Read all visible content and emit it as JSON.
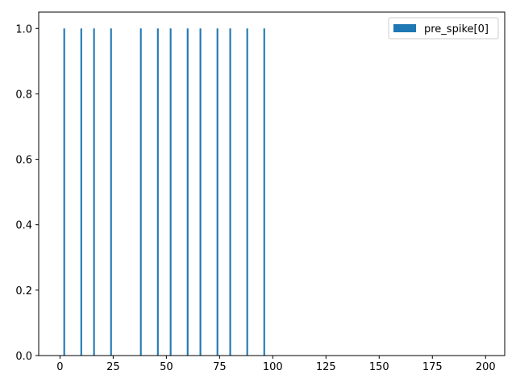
{
  "chart_data": {
    "type": "bar",
    "x": [
      2,
      10,
      16,
      24,
      38,
      46,
      52,
      60,
      66,
      74,
      80,
      88,
      96
    ],
    "series": [
      {
        "name": "pre_spike[0]",
        "values": [
          1,
          1,
          1,
          1,
          1,
          1,
          1,
          1,
          1,
          1,
          1,
          1,
          1
        ],
        "color": "#1f77b4"
      }
    ],
    "xlim": [
      -10,
      209
    ],
    "ylim": [
      0,
      1.05
    ],
    "xticks": [
      0,
      25,
      50,
      75,
      100,
      125,
      150,
      175,
      200
    ],
    "xtick_labels": [
      "0",
      "25",
      "50",
      "75",
      "100",
      "125",
      "150",
      "175",
      "200"
    ],
    "yticks": [
      0.0,
      0.2,
      0.4,
      0.6,
      0.8,
      1.0
    ],
    "ytick_labels": [
      "0.0",
      "0.2",
      "0.4",
      "0.6",
      "0.8",
      "1.0"
    ],
    "grid": false,
    "legend_position": "top-right",
    "title": "",
    "xlabel": "",
    "ylabel": ""
  }
}
